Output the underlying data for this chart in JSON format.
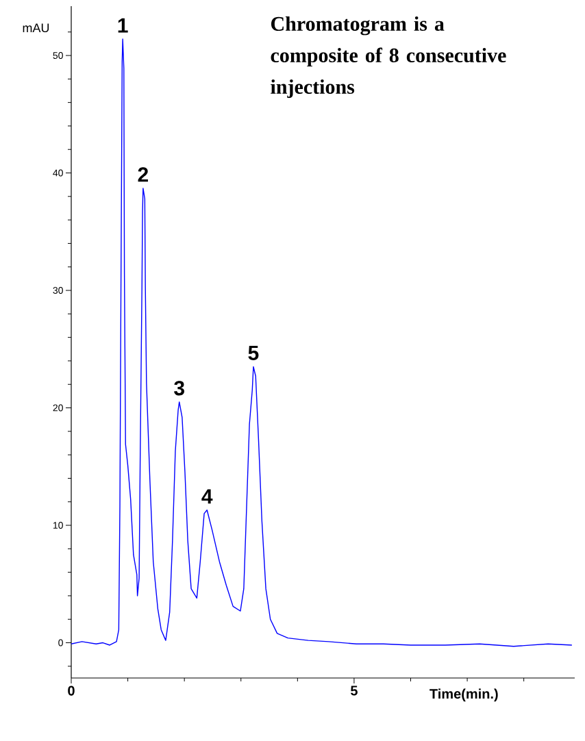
{
  "chart_data": {
    "type": "line",
    "xlabel": "Time(min.)",
    "ylabel": "mAU",
    "color": "#0000ff",
    "x": [
      0,
      0.19,
      0.44,
      0.56,
      0.68,
      0.8,
      0.84,
      0.86,
      0.88,
      0.9,
      0.91,
      0.93,
      0.94,
      0.96,
      1.0,
      1.05,
      1.1,
      1.16,
      1.17,
      1.2,
      1.22,
      1.25,
      1.26,
      1.27,
      1.3,
      1.31,
      1.33,
      1.39,
      1.45,
      1.53,
      1.59,
      1.67,
      1.74,
      1.79,
      1.84,
      1.89,
      1.91,
      1.96,
      2.01,
      2.06,
      2.12,
      2.22,
      2.28,
      2.35,
      2.4,
      2.49,
      2.62,
      2.74,
      2.86,
      2.99,
      3.05,
      3.1,
      3.15,
      3.2,
      3.22,
      3.26,
      3.31,
      3.37,
      3.44,
      3.52,
      3.64,
      3.83,
      4.19,
      4.55,
      5.04,
      5.52,
      6.0,
      6.61,
      7.22,
      7.82,
      8.43,
      8.85
    ],
    "values": [
      -0.1,
      0.1,
      -0.1,
      0,
      -0.2,
      0.1,
      1.1,
      11.6,
      31.4,
      49.5,
      51.4,
      48.9,
      31.4,
      16.9,
      15.1,
      12.2,
      7.5,
      5.8,
      4.0,
      5.5,
      16.3,
      30.3,
      36.7,
      38.7,
      37.8,
      30.3,
      22.1,
      13.9,
      6.9,
      2.9,
      1.1,
      0.2,
      2.6,
      8.7,
      16.3,
      19.8,
      20.5,
      19.2,
      14.5,
      8.7,
      4.6,
      3.8,
      6.9,
      11.0,
      11.3,
      9.6,
      6.9,
      4.9,
      3.1,
      2.7,
      4.6,
      11.6,
      18.6,
      21.5,
      23.5,
      22.7,
      17.4,
      10.4,
      4.6,
      2.0,
      0.8,
      0.4,
      0.2,
      0.1,
      -0.1,
      -0.1,
      -0.2,
      -0.2,
      -0.1,
      -0.3,
      -0.1,
      -0.2
    ],
    "xlim": [
      0,
      8.9
    ],
    "ylim": [
      -3,
      54.2
    ],
    "xticks": [
      0,
      {
        "value": 1,
        "label": null
      },
      {
        "value": 2,
        "label": null
      },
      {
        "value": 3,
        "label": null
      },
      {
        "value": 4,
        "label": null
      },
      5,
      {
        "value": 6,
        "label": null
      },
      {
        "value": 7,
        "label": null
      },
      {
        "value": 8,
        "label": null
      }
    ],
    "yticks": [
      {
        "value": -2,
        "label": null
      },
      0,
      {
        "value": 2,
        "label": null
      },
      {
        "value": 4,
        "label": null
      },
      {
        "value": 6,
        "label": null
      },
      {
        "value": 8,
        "label": null
      },
      10,
      {
        "value": 12,
        "label": null
      },
      {
        "value": 14,
        "label": null
      },
      {
        "value": 16,
        "label": null
      },
      {
        "value": 18,
        "label": null
      },
      20,
      {
        "value": 22,
        "label": null
      },
      {
        "value": 24,
        "label": null
      },
      {
        "value": 26,
        "label": null
      },
      {
        "value": 28,
        "label": null
      },
      30,
      {
        "value": 32,
        "label": null
      },
      {
        "value": 34,
        "label": null
      },
      {
        "value": 36,
        "label": null
      },
      {
        "value": 38,
        "label": null
      },
      40,
      {
        "value": 42,
        "label": null
      },
      {
        "value": 44,
        "label": null
      },
      {
        "value": 46,
        "label": null
      },
      {
        "value": 48,
        "label": null
      },
      50,
      {
        "value": 52,
        "label": null
      }
    ],
    "annotations": [
      {
        "text": "1",
        "x": 0.91,
        "y": 51.4
      },
      {
        "text": "2",
        "x": 1.27,
        "y": 38.7
      },
      {
        "text": "3",
        "x": 1.91,
        "y": 20.5
      },
      {
        "text": "4",
        "x": 2.4,
        "y": 11.3
      },
      {
        "text": "5",
        "x": 3.22,
        "y": 23.5
      },
      "Chromatogram is a composite of 8 consecutive injections"
    ]
  }
}
